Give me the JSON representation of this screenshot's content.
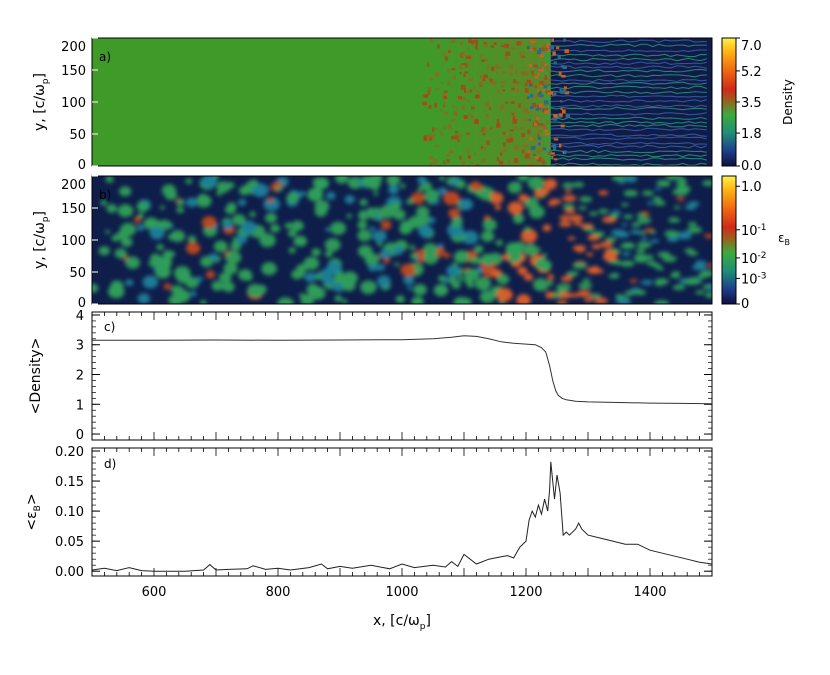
{
  "chart_data": [
    {
      "panel": "a",
      "type": "heatmap",
      "panel_label": "a)",
      "ylabel": "y, [c/ω",
      "ylabel_sub": "p",
      "ylabel_close": "]",
      "xlim": [
        500,
        1500
      ],
      "ylim": [
        0,
        200
      ],
      "yticks": [
        0,
        50,
        100,
        150,
        200
      ],
      "colorbar_label": "Density",
      "colorbar_ticks": [
        "0.0",
        "1.8",
        "3.5",
        "5.2",
        "7.0"
      ],
      "colorbar_tick_values": [
        0.0,
        1.8,
        3.5,
        5.2,
        7.0
      ],
      "colorbar_range": [
        0,
        7
      ],
      "shock_x": 1240,
      "upstream_density": 3.2,
      "downstream_density": 1.0
    },
    {
      "panel": "b",
      "type": "heatmap",
      "panel_label": "b)",
      "ylabel": "y, [c/ω",
      "ylabel_sub": "p",
      "ylabel_close": "]",
      "xlim": [
        500,
        1500
      ],
      "ylim": [
        0,
        200
      ],
      "yticks": [
        0,
        50,
        100,
        150,
        200
      ],
      "colorbar_label": "ε",
      "colorbar_label_sub": "B",
      "colorbar_ticks": [
        {
          "base": "1.0",
          "exp": ""
        },
        {
          "base": "10",
          "exp": "-1"
        },
        {
          "base": "10",
          "exp": "-2"
        },
        {
          "base": "10",
          "exp": "-3"
        },
        {
          "base": "0",
          "exp": ""
        }
      ],
      "colorbar_tick_fracs": [
        0.92,
        0.58,
        0.36,
        0.2,
        0.0
      ],
      "shock_x": 1240
    },
    {
      "panel": "c",
      "type": "line",
      "panel_label": "c)",
      "ylabel": "<Density>",
      "xlim": [
        500,
        1500
      ],
      "ylim": [
        -0.2,
        4.1
      ],
      "yticks": [
        0,
        1,
        2,
        3,
        4
      ],
      "series": [
        {
          "x": [
            500,
            600,
            700,
            800,
            900,
            1000,
            1050,
            1080,
            1100,
            1120,
            1140,
            1160,
            1180,
            1200,
            1215,
            1225,
            1232,
            1238,
            1243,
            1248,
            1252,
            1258,
            1265,
            1280,
            1300,
            1350,
            1400,
            1450,
            1500
          ],
          "y": [
            3.15,
            3.15,
            3.16,
            3.15,
            3.16,
            3.17,
            3.2,
            3.25,
            3.3,
            3.28,
            3.2,
            3.1,
            3.05,
            3.02,
            3.0,
            2.9,
            2.75,
            2.3,
            1.8,
            1.45,
            1.3,
            1.2,
            1.15,
            1.1,
            1.08,
            1.06,
            1.04,
            1.03,
            1.02
          ]
        }
      ]
    },
    {
      "panel": "d",
      "type": "line",
      "panel_label": "d)",
      "ylabel": "<ε",
      "ylabel_sub": "B",
      "ylabel_close": ">",
      "xlabel": "x, [c/ω",
      "xlabel_sub": "p",
      "xlabel_close": "]",
      "xlim": [
        500,
        1500
      ],
      "ylim": [
        -0.008,
        0.205
      ],
      "yticks": [
        "0.00",
        "0.05",
        "0.10",
        "0.15",
        "0.20"
      ],
      "ytick_values": [
        0,
        0.05,
        0.1,
        0.15,
        0.2
      ],
      "xticks": [
        600,
        800,
        1000,
        1200,
        1400
      ],
      "series": [
        {
          "x": [
            500,
            520,
            540,
            560,
            580,
            600,
            650,
            680,
            690,
            700,
            720,
            750,
            760,
            780,
            800,
            820,
            850,
            870,
            880,
            900,
            920,
            950,
            980,
            1000,
            1020,
            1050,
            1070,
            1080,
            1090,
            1100,
            1120,
            1140,
            1160,
            1170,
            1180,
            1190,
            1200,
            1205,
            1210,
            1215,
            1220,
            1225,
            1230,
            1235,
            1238,
            1240,
            1243,
            1246,
            1250,
            1255,
            1260,
            1265,
            1270,
            1280,
            1285,
            1290,
            1300,
            1320,
            1340,
            1360,
            1380,
            1400,
            1420,
            1440,
            1460,
            1480,
            1500
          ],
          "y": [
            0.002,
            0.005,
            0.001,
            0.006,
            0.001,
            0.0,
            0.0,
            0.002,
            0.011,
            0.002,
            0.003,
            0.004,
            0.009,
            0.003,
            0.005,
            0.002,
            0.006,
            0.012,
            0.004,
            0.008,
            0.005,
            0.01,
            0.004,
            0.012,
            0.006,
            0.01,
            0.007,
            0.016,
            0.008,
            0.028,
            0.012,
            0.02,
            0.024,
            0.026,
            0.022,
            0.04,
            0.05,
            0.085,
            0.1,
            0.09,
            0.11,
            0.095,
            0.12,
            0.1,
            0.135,
            0.182,
            0.15,
            0.12,
            0.16,
            0.13,
            0.06,
            0.065,
            0.06,
            0.07,
            0.08,
            0.07,
            0.06,
            0.055,
            0.05,
            0.045,
            0.045,
            0.035,
            0.03,
            0.025,
            0.02,
            0.015,
            0.012
          ]
        }
      ]
    }
  ]
}
